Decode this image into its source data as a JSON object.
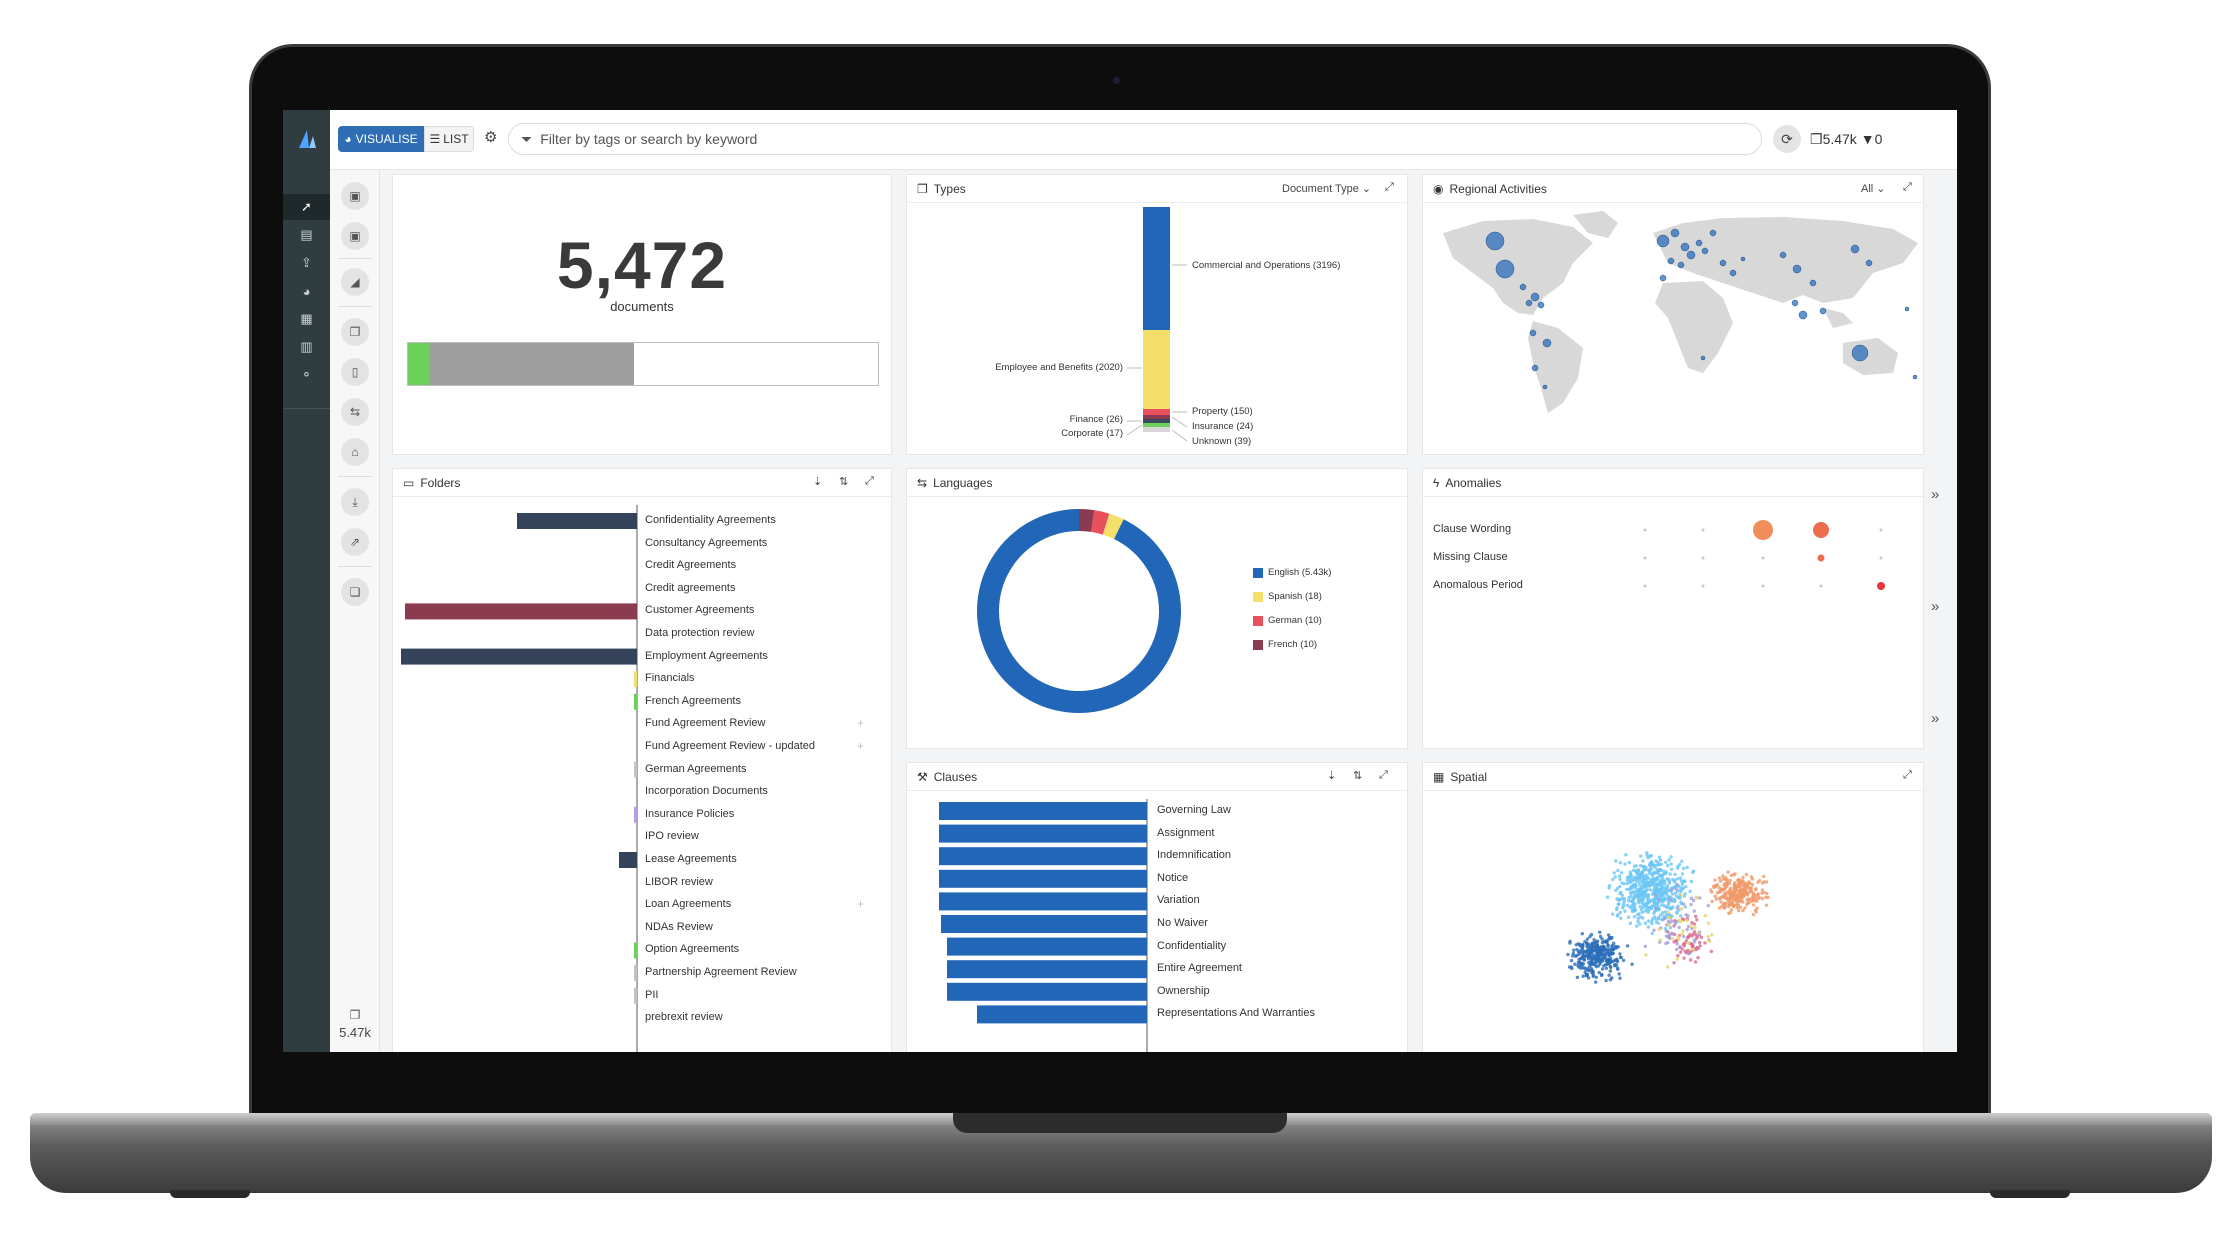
{
  "topbar": {
    "visualise_label": "VISUALISE",
    "list_label": "LIST",
    "search_placeholder": "Filter by tags or search by keyword",
    "docs_count": "5.47k",
    "filter_count": "0"
  },
  "tools": {
    "count": "5.47k"
  },
  "summary": {
    "value": "5,472",
    "label": "documents",
    "progress_green": 0.045,
    "progress_grey": 0.48
  },
  "types": {
    "title": "Types",
    "dropdown": "Document Type",
    "labels": {
      "commercial": "Commercial and Operations (3196)",
      "employee": "Employee and Benefits (2020)",
      "property": "Property (150)",
      "insurance": "Insurance (24)",
      "unknown": "Unknown (39)",
      "finance": "Finance (26)",
      "corporate": "Corporate (17)"
    }
  },
  "regional": {
    "title": "Regional Activities",
    "dropdown": "All"
  },
  "folders": {
    "title": "Folders",
    "items": [
      "Confidentiality Agreements",
      "Consultancy Agreements",
      "Credit Agreements",
      "Credit agreements",
      "Customer Agreements",
      "Data protection review",
      "Employment Agreements",
      "Financials",
      "French Agreements",
      "Fund Agreement Review",
      "Fund Agreement Review - updated",
      "German Agreements",
      "Incorporation Documents",
      "Insurance Policies",
      "IPO review",
      "Lease Agreements",
      "LIBOR review",
      "Loan Agreements",
      "NDAs Review",
      "Option Agreements",
      "Partnership Agreement Review",
      "PII",
      "prebrexit review"
    ],
    "plus_items": [
      9,
      10,
      17
    ]
  },
  "languages": {
    "title": "Languages",
    "legend": [
      "English (5.43k)",
      "Spanish (18)",
      "German (10)",
      "French (10)"
    ],
    "values": [
      5430,
      18,
      10,
      10
    ],
    "colors": [
      "#2266b8",
      "#f3df6a",
      "#e8505b",
      "#8b3a4f"
    ]
  },
  "anomalies": {
    "title": "Anomalies",
    "rows": [
      "Clause Wording",
      "Missing Clause",
      "Anomalous Period"
    ],
    "chevron": "»"
  },
  "clauses": {
    "title": "Clauses",
    "items": [
      "Governing Law",
      "Assignment",
      "Indemnification",
      "Notice",
      "Variation",
      "No Waiver",
      "Confidentiality",
      "Entire Agreement",
      "Ownership",
      "Representations And Warranties"
    ]
  },
  "spatial": {
    "title": "Spatial"
  }
}
